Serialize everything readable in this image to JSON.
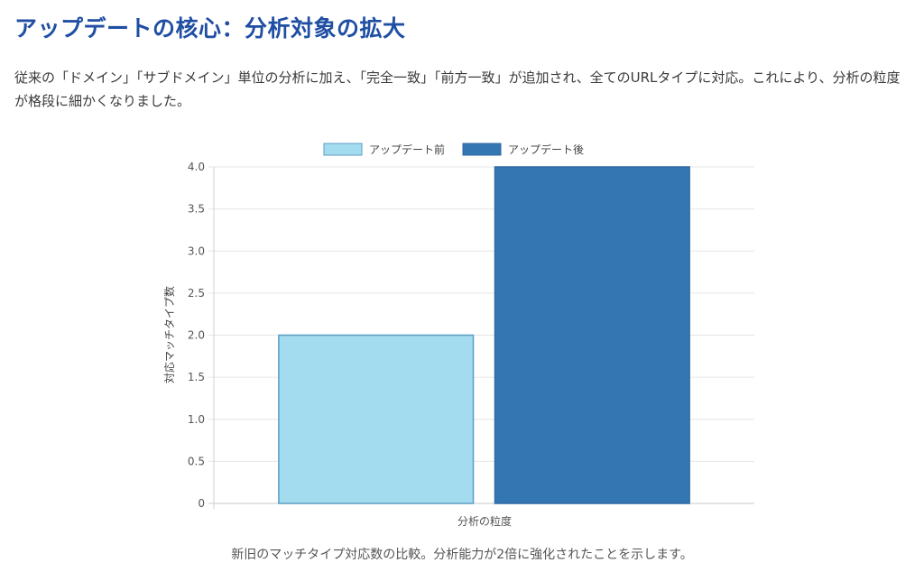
{
  "header": {
    "title": "アップデートの核心：分析対象の拡大",
    "description": "従来の「ドメイン」「サブドメイン」単位の分析に加え、「完全一致」「前方一致」が追加され、全てのURLタイプに対応。これにより、分析の粒度が格段に細かくなりました。"
  },
  "caption": "新旧のマッチタイプ対応数の比較。分析能力が2倍に強化されたことを示します。",
  "chart_data": {
    "type": "bar",
    "categories": [
      "分析の粒度"
    ],
    "series": [
      {
        "name": "アップデート前",
        "values": [
          2
        ],
        "color": "#a4dcef",
        "border": "#5b9cc4"
      },
      {
        "name": "アップデート後",
        "values": [
          4
        ],
        "color": "#3476b2",
        "border": "#2e6aa3"
      }
    ],
    "xlabel": "分析の粒度",
    "ylabel": "対応マッチタイプ数",
    "ylim": [
      0,
      4
    ],
    "yticks": [
      "0",
      "0.5",
      "1.0",
      "1.5",
      "2.0",
      "2.5",
      "3.0",
      "3.5",
      "4.0"
    ],
    "grid": true,
    "legend": "top-center"
  }
}
